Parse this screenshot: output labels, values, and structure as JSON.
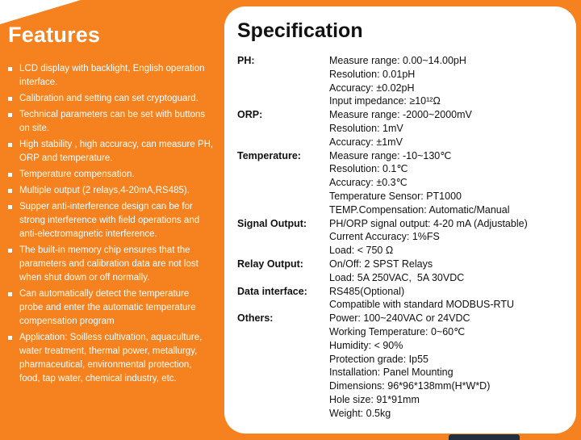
{
  "theme": {
    "background": "#F5821F",
    "panel_bg": "#FFFFFF",
    "features_text": "#FFFFFF",
    "spec_text": "#111111",
    "footer_bar": "#232F3E"
  },
  "features": {
    "title": "Features",
    "items": [
      "LCD display with backlight, English operation interface.",
      "Calibration and setting can set cryptoguard.",
      "Technical parameters can be set with buttons on site.",
      "High stability , high accuracy, can measure PH, ORP and temperature.",
      "Temperature compensation.",
      "Multiple output (2 relays,4-20mA,RS485).",
      "Supper anti-interference design can be for strong interference with field operations and anti-electromagnetic interference.",
      "The built-in memory chip ensures that the parameters and calibration data are not lost when shut down or off normally.",
      "Can automatically detect the temperature probe and enter the automatic temperature compensation program",
      "Application: Soilless cultivation, aquaculture, water treatment, thermal power, metallurgy, pharmaceutical, environmental protection, food, tap water, chemical industry, etc."
    ]
  },
  "specification": {
    "title": "Specification",
    "rows": [
      {
        "label": "PH:",
        "lines": [
          "Measure range: 0.00~14.00pH",
          "Resolution: 0.01pH",
          "Accuracy: ±0.02pH",
          "Input impedance: ≥10¹²Ω"
        ]
      },
      {
        "label": "ORP:",
        "lines": [
          "Measure range: -2000~2000mV",
          "Resolution: 1mV",
          "Accuracy: ±1mV"
        ]
      },
      {
        "label": "Temperature:",
        "lines": [
          "Measure range: -10~130℃",
          "Resolution: 0.1℃",
          "Accuracy: ±0.3℃",
          "Temperature Sensor: PT1000",
          "TEMP.Compensation: Automatic/Manual"
        ]
      },
      {
        "label": "Signal Output:",
        "lines": [
          "PH/ORP signal output: 4-20 mA (Adjustable)",
          "Current Accuracy: 1%FS",
          "Load: < 750 Ω"
        ]
      },
      {
        "label": "Relay Output:",
        "lines": [
          "On/Off: 2 SPST Relays",
          "Load: 5A 250VAC,  5A 30VDC"
        ]
      },
      {
        "label": "Data interface:",
        "lines": [
          "RS485(Optional)",
          "Compatible with standard MODBUS-RTU"
        ]
      },
      {
        "label": "Others:",
        "lines": [
          "Power: 100~240VAC or 24VDC",
          "Working Temperature: 0~60℃",
          "Humidity: < 90%",
          "Protection grade: Ip55",
          "Installation: Panel Mounting",
          "Dimensions: 96*96*138mm(H*W*D)",
          "Hole size: 91*91mm",
          "Weight: 0.5kg"
        ]
      }
    ]
  }
}
